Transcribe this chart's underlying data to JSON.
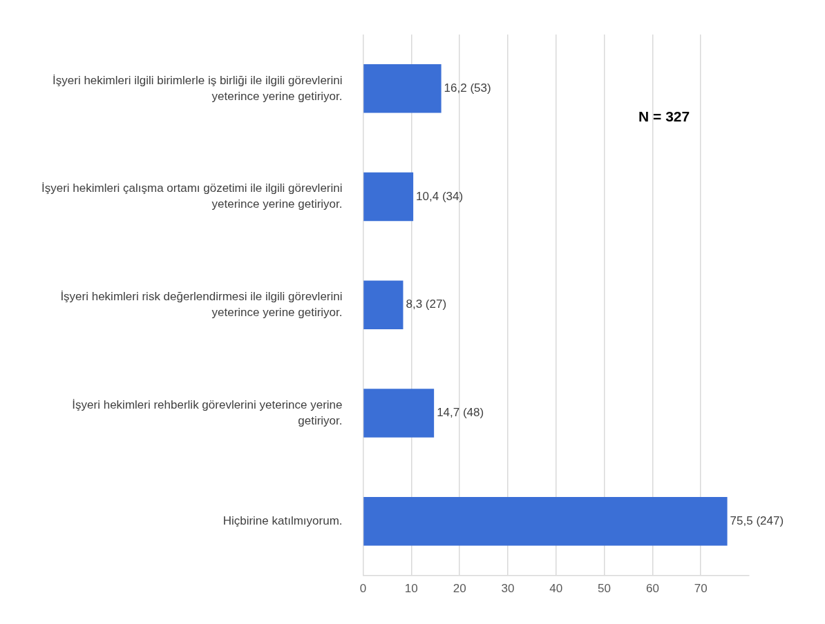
{
  "chart_data": {
    "type": "bar",
    "orientation": "horizontal",
    "categories": [
      "İşyeri hekimleri ilgili birimlerle iş birliği ile ilgili görevlerini yeterince yerine getiriyor.",
      "İşyeri hekimleri çalışma ortamı gözetimi ile ilgili görevlerini yeterince yerine getiriyor.",
      "İşyeri hekimleri risk değerlendirmesi ile ilgili görevlerini yeterince yerine getiriyor.",
      "İşyeri hekimleri rehberlik görevlerini yeterince yerine getiriyor.",
      "Hiçbirine katılmıyorum."
    ],
    "values": [
      16.2,
      10.4,
      8.3,
      14.7,
      75.5
    ],
    "value_labels": [
      "16,2 (53)",
      "10,4 (34)",
      "8,3 (27)",
      "14,7 (48)",
      "75,5 (247)"
    ],
    "color": "#3b6fd6",
    "xlim": [
      0,
      80
    ],
    "xticks": [
      0,
      10,
      20,
      30,
      40,
      50,
      60,
      70
    ],
    "grid": "x",
    "legend": false,
    "annotations": [
      "N = 327"
    ]
  }
}
